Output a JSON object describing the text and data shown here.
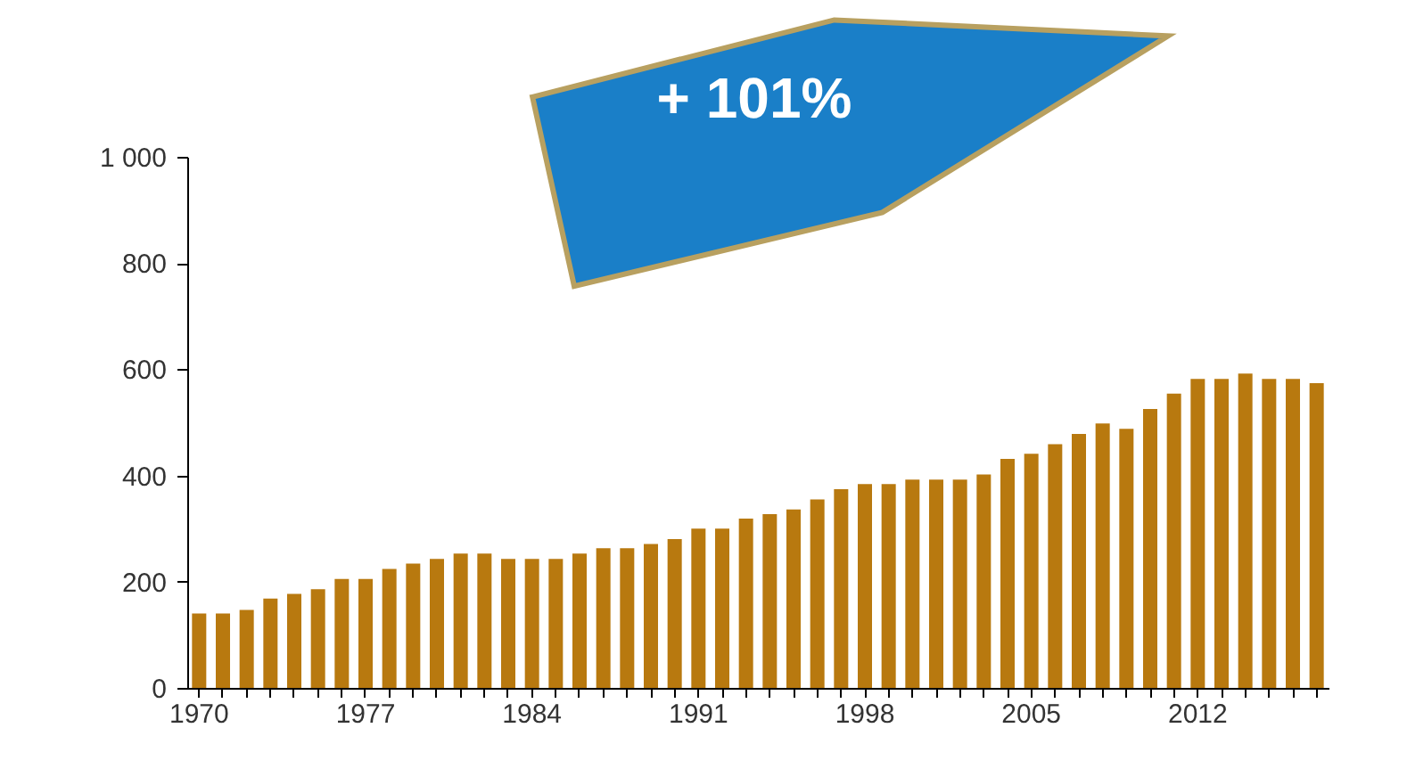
{
  "chart_data": {
    "type": "bar",
    "categories": [
      "1970",
      null,
      null,
      null,
      null,
      null,
      null,
      "1977",
      null,
      null,
      null,
      null,
      null,
      null,
      "1984",
      null,
      null,
      null,
      null,
      null,
      null,
      "1991",
      null,
      null,
      null,
      null,
      null,
      null,
      "1998",
      null,
      null,
      null,
      null,
      null,
      null,
      "2005",
      null,
      null,
      null,
      null,
      null,
      null,
      "2012",
      null,
      null,
      null,
      null,
      null
    ],
    "values": [
      140,
      140,
      147,
      168,
      177,
      186,
      205,
      205,
      224,
      234,
      243,
      253,
      253,
      243,
      243,
      243,
      253,
      263,
      263,
      271,
      280,
      300,
      300,
      319,
      327,
      336,
      355,
      374,
      384,
      384,
      392,
      392,
      392,
      402,
      431,
      441,
      459,
      478,
      498,
      488,
      525,
      554,
      582,
      582,
      592,
      582,
      582,
      574
    ],
    "color": "#b8790f",
    "ylim": [
      0,
      1000
    ],
    "yticks": [
      0,
      200,
      400,
      600,
      800,
      {
        "value": 1000,
        "label": "1 000"
      }
    ],
    "grid": false,
    "annotations": [
      "+ 101%"
    ]
  }
}
